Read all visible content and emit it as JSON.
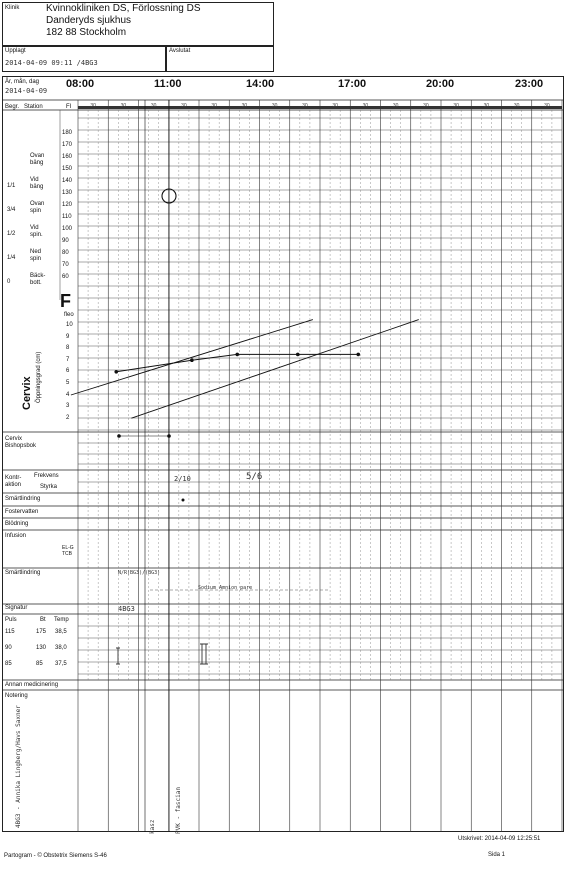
{
  "header": {
    "klinik_label": "Klinik",
    "clinic_line1": "Kvinnokliniken DS, Förlossning DS",
    "clinic_line2": "Danderyds sjukhus",
    "clinic_line3": "182 88 Stockholm",
    "upplagt_label": "Upplagt",
    "upplagt_value": "2014-04-09 09:11 /4BG3",
    "avslutat_label": "Avslutat"
  },
  "timeline": {
    "date_label": "År, mån, dag",
    "date_value": "2014-04-09",
    "hours": [
      "08:00",
      "11:00",
      "14:00",
      "17:00",
      "20:00",
      "23:00"
    ],
    "minute_ticks": [
      "30",
      "30",
      "30",
      "30",
      "30",
      "30",
      "30",
      "30",
      "30",
      "30",
      "30",
      "30",
      "30",
      "30",
      "30",
      "30"
    ],
    "begr_label": "Begr.",
    "station_label": "Station",
    "fi_label": "FI"
  },
  "fhr_scale": [
    "180",
    "170",
    "160",
    "150",
    "140",
    "130",
    "120",
    "110",
    "100",
    "90",
    "80",
    "70",
    "60"
  ],
  "station": [
    {
      "frac": "",
      "label": "Ovan\nbäng"
    },
    {
      "frac": "1/1",
      "label": "Vid\nbäng"
    },
    {
      "frac": "3/4",
      "label": "Ovan\nspin"
    },
    {
      "frac": "1/2",
      "label": "Vid\nspin."
    },
    {
      "frac": "1/4",
      "label": "Ned\nspin"
    },
    {
      "frac": "0",
      "label": "Bäck-\nbott."
    }
  ],
  "cervix": {
    "big_letter": "F",
    "fleo": "fleo",
    "scale": [
      "10",
      "9",
      "8",
      "7",
      "6",
      "5",
      "4",
      "3",
      "2"
    ],
    "axis_label": "Cervix",
    "axis_sub": "Öppningsgrad (cm)"
  },
  "rows": {
    "cervix_bishop": "Cervix\nBishopsbok",
    "kontraktion": "Kontr-\naktion",
    "frekvens": "Frekvens",
    "styrka": "Styrka",
    "smartlindring": "Smärtlindring",
    "fostervatten": "Fostervatten",
    "blodning": "Blödning",
    "infusion": "Infusion",
    "infusion_note": "EL-G\nTCB",
    "smartlindring2": "Smärtlindring",
    "signatur": "Signatur",
    "puls": "Puls",
    "bt": "Bt",
    "temp": "Temp",
    "annan_medicinering": "Annan medicinering",
    "notering": "Notering"
  },
  "vitals_scale": [
    {
      "puls": "115",
      "bt": "175",
      "temp": "38,5"
    },
    {
      "puls": "90",
      "bt": "130",
      "temp": "38,0"
    },
    {
      "puls": "85",
      "bt": "85",
      "temp": "37,5"
    }
  ],
  "handwritten": {
    "contraction_1": "2/10",
    "contraction_2": "5/6",
    "smart_1": "N/R(BG3)/(BG3)",
    "smart_2": "Sodium Amnion pare",
    "signatur": "4BG3",
    "note_1": "4BG3 - Annika Lingberg/Havs Saxner",
    "note_2": "kasz",
    "note_3": "PVK - fascian"
  },
  "footer": {
    "printed": "Utskrivet: 2014-04-09 12:25:51",
    "left": "Partogram - © Obstetrix Siemens S-46",
    "page": "Sida 1"
  },
  "chart_data": {
    "type": "line",
    "title": "",
    "xlabel": "",
    "ylabel": "Cervix Öppningsgrad (cm)",
    "x_unit": "hours",
    "ylim": [
      1,
      10
    ],
    "series": [
      {
        "values": [
          [
            1.0,
            5.5
          ],
          [
            3.5,
            6.5
          ],
          [
            5.0,
            7.0
          ],
          [
            7.0,
            7.0
          ],
          [
            9.0,
            7.0
          ]
        ]
      },
      {
        "values": [
          [
            -0.5,
            3.5
          ],
          [
            7.5,
            10.0
          ]
        ]
      },
      {
        "values": [
          [
            1.5,
            1.5
          ],
          [
            11.0,
            10.0
          ]
        ]
      }
    ]
  }
}
